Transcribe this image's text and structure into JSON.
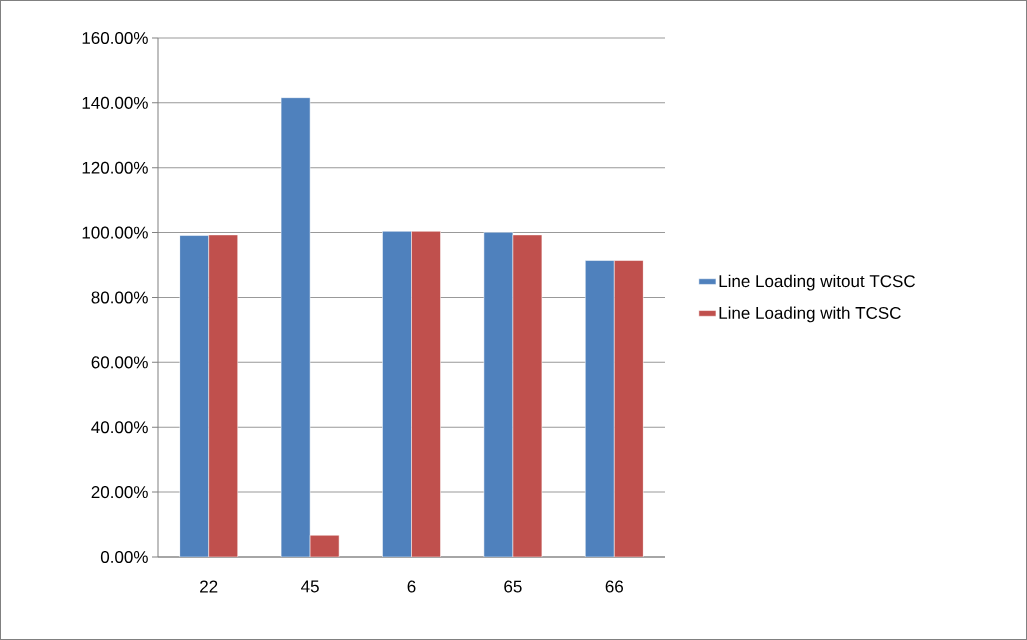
{
  "chart_data": {
    "type": "bar",
    "categories": [
      "22",
      "45",
      "6",
      "65",
      "66"
    ],
    "series": [
      {
        "name": "Line Loading witout TCSC",
        "color": "#4f81bd",
        "values": [
          99.1,
          141.6,
          100.4,
          100.1,
          91.4
        ]
      },
      {
        "name": "Line Loading with TCSC",
        "color": "#c0504d",
        "values": [
          99.3,
          6.7,
          100.4,
          99.3,
          91.4
        ]
      }
    ],
    "ylim": [
      0,
      160
    ],
    "yticks": [
      {
        "value": 0,
        "label": "0.00%"
      },
      {
        "value": 20,
        "label": "20.00%"
      },
      {
        "value": 40,
        "label": "40.00%"
      },
      {
        "value": 60,
        "label": "60.00%"
      },
      {
        "value": 80,
        "label": "80.00%"
      },
      {
        "value": 100,
        "label": "100.00%"
      },
      {
        "value": 120,
        "label": "120.00%"
      },
      {
        "value": 140,
        "label": "140.00%"
      },
      {
        "value": 160,
        "label": "160.00%"
      }
    ],
    "grid": "y",
    "legend": "right"
  }
}
